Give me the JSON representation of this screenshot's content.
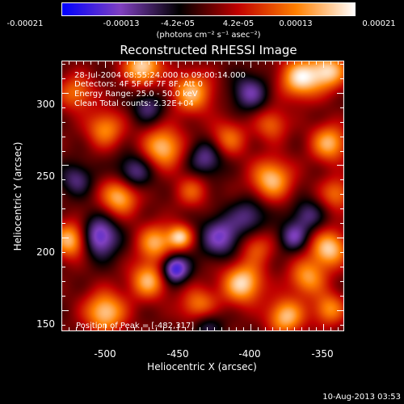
{
  "colorbar": {
    "ticks": [
      "-0.00021",
      "-0.00013",
      "-4.2e-05",
      "4.2e-05",
      "0.00013",
      "0.00021"
    ],
    "tick_values": [
      -0.00021,
      -0.00013,
      -4.2e-05,
      4.2e-05,
      0.00013,
      0.00021
    ],
    "unit_label": "(photons cm⁻² s⁻¹ asec⁻²)",
    "colors": [
      "#0000ff",
      "#8040c0",
      "#000000",
      "#c00000",
      "#ff8000",
      "#ffffff"
    ]
  },
  "chart_data": {
    "type": "heatmap",
    "title": "Reconstructed RHESSI Image",
    "xlabel": "Heliocentric X (arcsec)",
    "ylabel": "Heliocentric Y (arcsec)",
    "xlim": [
      -530,
      -335
    ],
    "ylim": [
      135,
      322
    ],
    "xticks": [
      -500,
      -450,
      -400,
      -350
    ],
    "yticks": [
      150,
      200,
      250,
      300
    ],
    "annotation_lines": [
      "28-Jul-2004 08:55:24.000 to 09:00:14.000",
      "Detectors: 4F 5F 6F 7F 8F, Att 0",
      "Energy Range: 25.0 - 50.0 keV",
      "Clean    Total counts: 2.32E+04"
    ],
    "peak_label": "Position of Peak = [-482,317]",
    "grid": false,
    "blobs": [
      {
        "x": -474,
        "y": 318,
        "a": 1.0,
        "s": 9
      },
      {
        "x": -440,
        "y": 300,
        "a": 0.85,
        "s": 10
      },
      {
        "x": -365,
        "y": 310,
        "a": 1.0,
        "s": 10
      },
      {
        "x": -345,
        "y": 315,
        "a": 0.9,
        "s": 9
      },
      {
        "x": -520,
        "y": 300,
        "a": 0.6,
        "s": 9
      },
      {
        "x": -500,
        "y": 275,
        "a": 0.7,
        "s": 9
      },
      {
        "x": -460,
        "y": 262,
        "a": 0.9,
        "s": 10
      },
      {
        "x": -415,
        "y": 268,
        "a": 0.6,
        "s": 9
      },
      {
        "x": -385,
        "y": 278,
        "a": 0.55,
        "s": 8
      },
      {
        "x": -345,
        "y": 265,
        "a": 0.85,
        "s": 9
      },
      {
        "x": -490,
        "y": 228,
        "a": 0.9,
        "s": 9
      },
      {
        "x": -440,
        "y": 232,
        "a": 0.5,
        "s": 8
      },
      {
        "x": -385,
        "y": 240,
        "a": 0.9,
        "s": 10
      },
      {
        "x": -340,
        "y": 230,
        "a": 0.6,
        "s": 8
      },
      {
        "x": -523,
        "y": 198,
        "a": 1.0,
        "s": 9
      },
      {
        "x": -465,
        "y": 196,
        "a": 0.8,
        "s": 9
      },
      {
        "x": -448,
        "y": 200,
        "a": 0.9,
        "s": 6
      },
      {
        "x": -395,
        "y": 193,
        "a": 0.5,
        "s": 8
      },
      {
        "x": -345,
        "y": 192,
        "a": 0.95,
        "s": 9
      },
      {
        "x": -470,
        "y": 170,
        "a": 0.85,
        "s": 9
      },
      {
        "x": -405,
        "y": 168,
        "a": 1.0,
        "s": 10
      },
      {
        "x": -360,
        "y": 172,
        "a": 0.75,
        "s": 9
      },
      {
        "x": -500,
        "y": 148,
        "a": 0.95,
        "s": 10
      },
      {
        "x": -435,
        "y": 152,
        "a": 0.7,
        "s": 9
      },
      {
        "x": -375,
        "y": 145,
        "a": 0.9,
        "s": 9
      },
      {
        "x": -345,
        "y": 150,
        "a": 0.7,
        "s": 8
      },
      {
        "x": -505,
        "y": 200,
        "a": -0.9,
        "s": 10
      },
      {
        "x": -452,
        "y": 178,
        "a": -1.0,
        "s": 7
      },
      {
        "x": -420,
        "y": 200,
        "a": -0.7,
        "s": 10
      },
      {
        "x": -430,
        "y": 255,
        "a": -0.6,
        "s": 9
      },
      {
        "x": -480,
        "y": 245,
        "a": -0.6,
        "s": 9
      },
      {
        "x": -400,
        "y": 215,
        "a": -0.5,
        "s": 9
      },
      {
        "x": -360,
        "y": 215,
        "a": -0.5,
        "s": 8
      },
      {
        "x": -470,
        "y": 290,
        "a": -0.5,
        "s": 8
      },
      {
        "x": -400,
        "y": 300,
        "a": -0.6,
        "s": 9
      },
      {
        "x": -520,
        "y": 240,
        "a": -0.5,
        "s": 8
      },
      {
        "x": -430,
        "y": 140,
        "a": -0.5,
        "s": 8
      },
      {
        "x": -370,
        "y": 200,
        "a": -0.6,
        "s": 7
      }
    ]
  },
  "footer": {
    "timestamp": "10-Aug-2013 03:53"
  }
}
